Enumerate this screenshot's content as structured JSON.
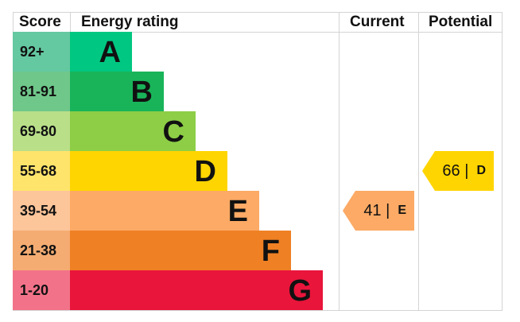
{
  "headers": {
    "score": "Score",
    "rating": "Energy rating",
    "current": "Current",
    "potential": "Potential"
  },
  "chart_data": {
    "type": "bar",
    "categories": [
      "A",
      "B",
      "C",
      "D",
      "E",
      "F",
      "G"
    ],
    "score_ranges": [
      "92+",
      "81-91",
      "69-80",
      "55-68",
      "39-54",
      "21-38",
      "1-20"
    ],
    "colors": [
      "#00c781",
      "#19b459",
      "#8dce46",
      "#ffd500",
      "#fcaa65",
      "#ef8023",
      "#e9153b"
    ],
    "score_colors": [
      "#64c8a1",
      "#6fc78a",
      "#b9df89",
      "#ffe46b",
      "#fdc59a",
      "#f4ac72",
      "#f27389"
    ],
    "current": {
      "value": 41,
      "band": "E",
      "sep": "|",
      "color": "#fcaa65"
    },
    "potential": {
      "value": 66,
      "band": "D",
      "sep": "|",
      "color": "#ffd500"
    }
  }
}
